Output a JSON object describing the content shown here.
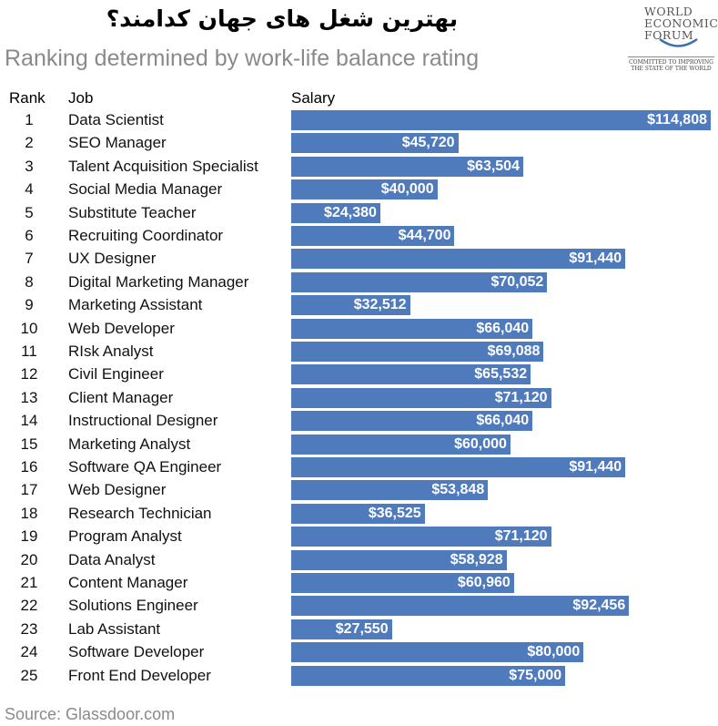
{
  "header": {
    "title": "بهترین شغل های جهان کدامند؟",
    "subtitle": "Ranking determined by work-life balance rating"
  },
  "logo": {
    "lines": [
      "WORLD",
      "ECONOMIC",
      "FORUM"
    ],
    "tagline": "COMMITTED TO IMPROVING THE STATE OF THE WORLD"
  },
  "columns": {
    "rank": "Rank",
    "job": "Job",
    "salary": "Salary"
  },
  "source": "Source: Glassdoor.com",
  "colors": {
    "bar": "#4f7bbd",
    "subtitle": "#8a8a8a"
  },
  "chart_data": {
    "type": "bar",
    "orientation": "horizontal",
    "title": "Ranking determined by work-life balance rating",
    "xlabel": "Salary",
    "xlim": [
      0,
      114808
    ],
    "rows": [
      {
        "rank": "1",
        "job": "Data Scientist",
        "value": 114808,
        "label": "$114,808"
      },
      {
        "rank": "2",
        "job": "SEO Manager",
        "value": 45720,
        "label": "$45,720"
      },
      {
        "rank": "3",
        "job": "Talent Acquisition Specialist",
        "value": 63504,
        "label": "$63,504"
      },
      {
        "rank": "4",
        "job": "Social Media Manager",
        "value": 40000,
        "label": "$40,000"
      },
      {
        "rank": "5",
        "job": "Substitute Teacher",
        "value": 24380,
        "label": "$24,380"
      },
      {
        "rank": "6",
        "job": "Recruiting Coordinator",
        "value": 44700,
        "label": "$44,700"
      },
      {
        "rank": "7",
        "job": "UX Designer",
        "value": 91440,
        "label": "$91,440"
      },
      {
        "rank": "8",
        "job": "Digital Marketing Manager",
        "value": 70052,
        "label": "$70,052"
      },
      {
        "rank": "9",
        "job": "Marketing Assistant",
        "value": 32512,
        "label": "$32,512"
      },
      {
        "rank": "10",
        "job": "Web Developer",
        "value": 66040,
        "label": "$66,040"
      },
      {
        "rank": "11",
        "job": "RIsk Analyst",
        "value": 69088,
        "label": "$69,088"
      },
      {
        "rank": "12",
        "job": "Civil Engineer",
        "value": 65532,
        "label": "$65,532"
      },
      {
        "rank": "13",
        "job": "Client Manager",
        "value": 71120,
        "label": "$71,120"
      },
      {
        "rank": "14",
        "job": "Instructional Designer",
        "value": 66040,
        "label": "$66,040"
      },
      {
        "rank": "15",
        "job": "Marketing Analyst",
        "value": 60000,
        "label": "$60,000"
      },
      {
        "rank": "16",
        "job": "Software QA Engineer",
        "value": 91440,
        "label": "$91,440"
      },
      {
        "rank": "17",
        "job": "Web Designer",
        "value": 53848,
        "label": "$53,848"
      },
      {
        "rank": "18",
        "job": "Research Technician",
        "value": 36525,
        "label": "$36,525"
      },
      {
        "rank": "19",
        "job": "Program Analyst",
        "value": 71120,
        "label": "$71,120"
      },
      {
        "rank": "20",
        "job": "Data Analyst",
        "value": 58928,
        "label": "$58,928"
      },
      {
        "rank": "21",
        "job": "Content Manager",
        "value": 60960,
        "label": "$60,960"
      },
      {
        "rank": "22",
        "job": "Solutions Engineer",
        "value": 92456,
        "label": "$92,456"
      },
      {
        "rank": "23",
        "job": "Lab Assistant",
        "value": 27550,
        "label": "$27,550"
      },
      {
        "rank": "24",
        "job": "Software Developer",
        "value": 80000,
        "label": "$80,000"
      },
      {
        "rank": "25",
        "job": "Front End Developer",
        "value": 75000,
        "label": "$75,000"
      }
    ]
  }
}
